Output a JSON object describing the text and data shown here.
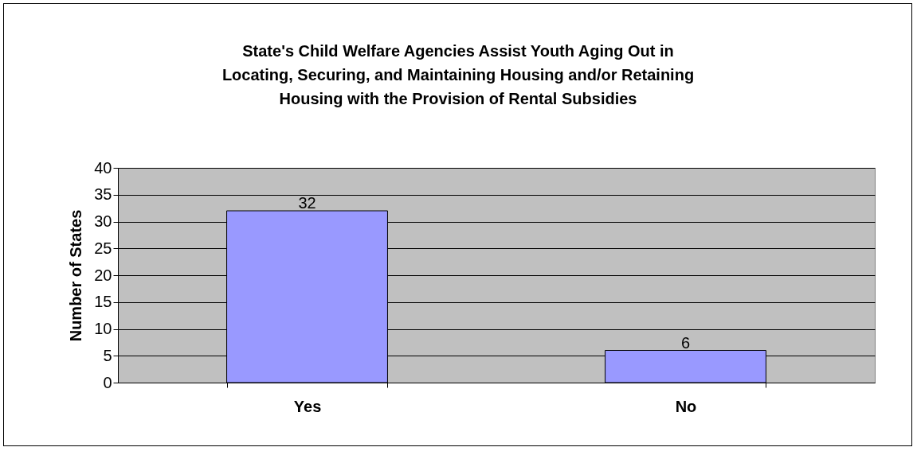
{
  "chart_data": {
    "type": "bar",
    "title": "State's Child Welfare Agencies Assist Youth Aging Out in Locating, Securing, and Maintaining Housing and/or Retaining Housing with the Provision of Rental Subsidies",
    "ylabel": "Number of States",
    "categories": [
      "Yes",
      "No"
    ],
    "values": [
      32,
      6
    ],
    "color": "#9999ff",
    "ylim": [
      0,
      40
    ],
    "yticks": [
      0,
      5,
      10,
      15,
      20,
      25,
      30,
      35,
      40
    ],
    "grid": "y",
    "data_labels": true
  }
}
